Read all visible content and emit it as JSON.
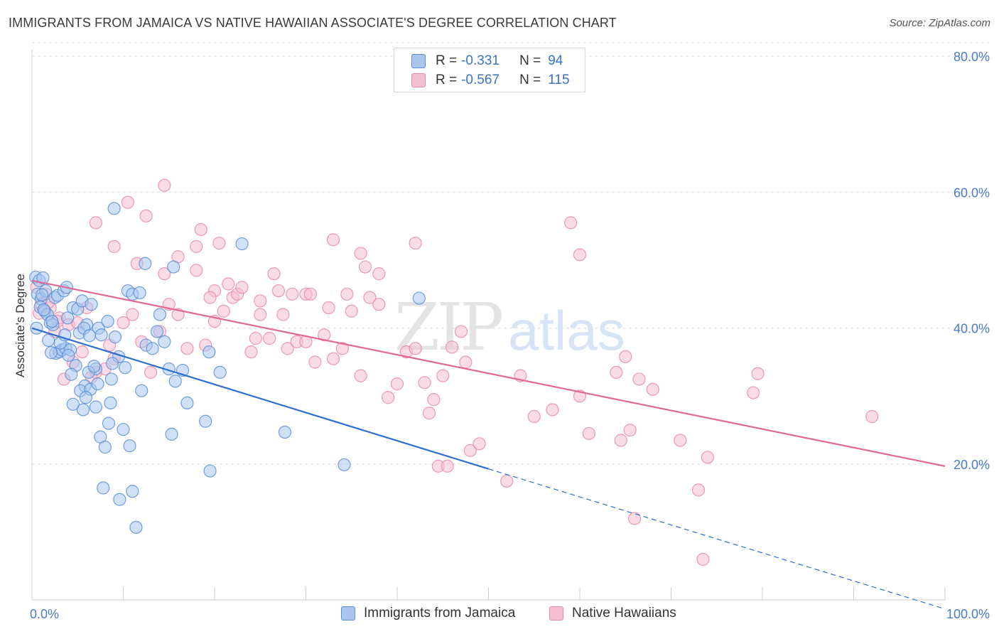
{
  "header": {
    "title": "IMMIGRANTS FROM JAMAICA VS NATIVE HAWAIIAN ASSOCIATE'S DEGREE CORRELATION CHART",
    "source": "Source: ZipAtlas.com"
  },
  "watermark": {
    "zip": "ZIP",
    "atlas": "atlas"
  },
  "colors": {
    "blue_fill": "#a9c6ee",
    "blue_stroke": "#5b8fd6",
    "blue_line": "#2d6fd1",
    "pink_fill": "#f6bfd1",
    "pink_stroke": "#e88aaa",
    "pink_line": "#e06a95",
    "tick_text": "#4a7cc7",
    "grid": "#dcdcdc"
  },
  "legend": {
    "rows": [
      {
        "r_label": "R =",
        "r_value": "-0.331",
        "n_label": "N =",
        "n_value": "94"
      },
      {
        "r_label": "R =",
        "r_value": "-0.567",
        "n_label": "N =",
        "n_value": "115"
      }
    ]
  },
  "bottom_legend": {
    "items": [
      "Immigrants from Jamaica",
      "Native Hawaiians"
    ]
  },
  "chart_data": {
    "type": "scatter",
    "ylabel": "Associate's Degree",
    "xlim": [
      0,
      100
    ],
    "ylim": [
      0,
      82
    ],
    "x_tick_labels": [
      {
        "value": 0,
        "label": "0.0%"
      },
      {
        "value": 100,
        "label": "100.0%"
      }
    ],
    "x_minor_ticks": [
      0,
      10,
      20,
      30,
      40,
      50,
      60,
      70,
      80,
      90,
      100
    ],
    "y_ticks": [
      {
        "value": 20,
        "label": "20.0%"
      },
      {
        "value": 40,
        "label": "40.0%"
      },
      {
        "value": 60,
        "label": "60.0%"
      },
      {
        "value": 80,
        "label": "80.0%"
      }
    ],
    "grid": "horizontal dashed",
    "legend_placement": "top-center",
    "series": [
      {
        "name": "Immigrants from Jamaica",
        "color": "blue",
        "trend": {
          "x0": 0,
          "y0": 40.0,
          "x1": 50,
          "y1": 19.3,
          "dashed_to_x": 100,
          "dashed_to_y": -1.3
        },
        "points": [
          [
            0.4,
            47.5
          ],
          [
            0.8,
            47.0
          ],
          [
            1.2,
            47.4
          ],
          [
            0.6,
            45.0
          ],
          [
            1.0,
            44.3
          ],
          [
            1.5,
            45.5
          ],
          [
            0.9,
            43.1
          ],
          [
            1.4,
            42.5
          ],
          [
            1.7,
            42.0
          ],
          [
            2.0,
            40.8
          ],
          [
            2.5,
            44.5
          ],
          [
            2.8,
            44.8
          ],
          [
            3.5,
            45.5
          ],
          [
            3.8,
            46.0
          ],
          [
            4.5,
            43.0
          ],
          [
            5.0,
            42.8
          ],
          [
            5.5,
            44.0
          ],
          [
            6.5,
            43.5
          ],
          [
            6.0,
            40.5
          ],
          [
            7.3,
            40.0
          ],
          [
            1.8,
            38.2
          ],
          [
            2.3,
            40.5
          ],
          [
            2.6,
            36.3
          ],
          [
            3.0,
            36.5
          ],
          [
            3.3,
            36.8
          ],
          [
            3.7,
            37.0
          ],
          [
            4.2,
            36.8
          ],
          [
            4.8,
            34.5
          ],
          [
            5.2,
            39.3
          ],
          [
            5.7,
            40.0
          ],
          [
            6.3,
            38.9
          ],
          [
            7.6,
            39.0
          ],
          [
            8.3,
            41.0
          ],
          [
            9.5,
            35.8
          ],
          [
            10.2,
            34.2
          ],
          [
            8.8,
            34.8
          ],
          [
            7.0,
            34.0
          ],
          [
            6.2,
            33.5
          ],
          [
            5.8,
            31.5
          ],
          [
            5.3,
            30.8
          ],
          [
            4.5,
            28.8
          ],
          [
            5.6,
            28.0
          ],
          [
            7.0,
            28.4
          ],
          [
            8.6,
            29.0
          ],
          [
            8.4,
            26.0
          ],
          [
            10.0,
            25.1
          ],
          [
            7.5,
            24.0
          ],
          [
            8.0,
            22.5
          ],
          [
            10.7,
            22.7
          ],
          [
            12.0,
            30.8
          ],
          [
            12.5,
            37.5
          ],
          [
            13.2,
            37.0
          ],
          [
            14.0,
            42.0
          ],
          [
            14.5,
            38.0
          ],
          [
            15.0,
            34.0
          ],
          [
            15.7,
            32.2
          ],
          [
            16.5,
            33.8
          ],
          [
            17.0,
            29.0
          ],
          [
            15.3,
            24.4
          ],
          [
            19.0,
            26.3
          ],
          [
            19.4,
            36.5
          ],
          [
            20.6,
            33.5
          ],
          [
            23.0,
            52.4
          ],
          [
            19.5,
            19.0
          ],
          [
            10.5,
            45.5
          ],
          [
            11.0,
            45.0
          ],
          [
            12.4,
            49.5
          ],
          [
            15.5,
            49.0
          ],
          [
            9.0,
            57.6
          ],
          [
            34.2,
            19.9
          ],
          [
            42.4,
            44.4
          ],
          [
            27.7,
            24.7
          ],
          [
            11.0,
            16.0
          ],
          [
            7.8,
            16.5
          ],
          [
            9.6,
            14.8
          ],
          [
            11.4,
            10.7
          ],
          [
            6.4,
            31.0
          ],
          [
            7.2,
            31.8
          ],
          [
            2.1,
            36.4
          ],
          [
            3.1,
            37.8
          ],
          [
            4.0,
            36.0
          ],
          [
            1.3,
            42.7
          ],
          [
            0.5,
            40.0
          ],
          [
            2.2,
            41.0
          ],
          [
            3.6,
            39.0
          ],
          [
            4.3,
            33.2
          ],
          [
            6.8,
            34.4
          ],
          [
            11.8,
            45.2
          ],
          [
            13.7,
            39.5
          ],
          [
            9.1,
            38.7
          ],
          [
            5.9,
            29.8
          ],
          [
            3.9,
            41.5
          ],
          [
            8.7,
            32.5
          ],
          [
            1.1,
            44.9
          ]
        ]
      },
      {
        "name": "Native Hawaiians",
        "color": "pink",
        "trend": {
          "x0": 0,
          "y0": 47.0,
          "x1": 100,
          "y1": 19.7
        },
        "points": [
          [
            0.5,
            46.0
          ],
          [
            1.5,
            45.0
          ],
          [
            1.0,
            43.5
          ],
          [
            2.0,
            43.0
          ],
          [
            3.0,
            41.5
          ],
          [
            2.5,
            39.5
          ],
          [
            4.0,
            40.5
          ],
          [
            5.0,
            40.8
          ],
          [
            6.0,
            43.0
          ],
          [
            3.5,
            32.5
          ],
          [
            7.0,
            33.5
          ],
          [
            8.0,
            34.0
          ],
          [
            9.0,
            35.5
          ],
          [
            10.0,
            40.8
          ],
          [
            11.0,
            42.0
          ],
          [
            12.0,
            38.0
          ],
          [
            13.0,
            33.5
          ],
          [
            14.0,
            39.5
          ],
          [
            15.0,
            43.5
          ],
          [
            16.0,
            42.0
          ],
          [
            17.0,
            37.0
          ],
          [
            18.0,
            48.5
          ],
          [
            19.0,
            37.5
          ],
          [
            20.0,
            41.0
          ],
          [
            21.0,
            42.5
          ],
          [
            22.0,
            44.5
          ],
          [
            22.5,
            45.0
          ],
          [
            23.0,
            46.0
          ],
          [
            24.0,
            36.5
          ],
          [
            25.0,
            42.0
          ],
          [
            26.0,
            38.5
          ],
          [
            27.0,
            45.5
          ],
          [
            28.0,
            37.0
          ],
          [
            29.0,
            38.0
          ],
          [
            30.0,
            45.0
          ],
          [
            31.0,
            35.0
          ],
          [
            32.0,
            39.0
          ],
          [
            33.0,
            35.5
          ],
          [
            34.0,
            37.0
          ],
          [
            35.0,
            42.5
          ],
          [
            36.0,
            33.0
          ],
          [
            37.0,
            44.5
          ],
          [
            38.0,
            43.5
          ],
          [
            39.0,
            29.8
          ],
          [
            40.0,
            31.8
          ],
          [
            41.0,
            36.5
          ],
          [
            42.0,
            37.0
          ],
          [
            43.0,
            32.0
          ],
          [
            44.0,
            29.5
          ],
          [
            45.0,
            33.0
          ],
          [
            46.0,
            37.2
          ],
          [
            47.0,
            39.5
          ],
          [
            48.0,
            22.0
          ],
          [
            49.0,
            23.0
          ],
          [
            52.0,
            17.5
          ],
          [
            53.5,
            33.0
          ],
          [
            55.0,
            27.0
          ],
          [
            57.0,
            28.0
          ],
          [
            60.0,
            30.0
          ],
          [
            61.0,
            24.5
          ],
          [
            64.0,
            33.5
          ],
          [
            65.0,
            35.8
          ],
          [
            64.5,
            23.5
          ],
          [
            65.5,
            25.0
          ],
          [
            66.0,
            12.0
          ],
          [
            66.5,
            32.5
          ],
          [
            68.0,
            31.0
          ],
          [
            71.0,
            23.5
          ],
          [
            73.0,
            16.2
          ],
          [
            74.0,
            21.0
          ],
          [
            79.0,
            30.5
          ],
          [
            79.5,
            33.3
          ],
          [
            73.5,
            6.0
          ],
          [
            92.0,
            27.0
          ],
          [
            59.0,
            55.5
          ],
          [
            60.0,
            50.8
          ],
          [
            10.5,
            58.5
          ],
          [
            14.5,
            61.0
          ],
          [
            12.5,
            56.5
          ],
          [
            9.0,
            52.0
          ],
          [
            7.0,
            55.5
          ],
          [
            18.5,
            54.5
          ],
          [
            18.0,
            52.0
          ],
          [
            20.5,
            52.5
          ],
          [
            11.5,
            49.5
          ],
          [
            14.5,
            48.0
          ],
          [
            16.0,
            50.5
          ],
          [
            26.5,
            48.0
          ],
          [
            36.5,
            49.0
          ],
          [
            38.0,
            48.0
          ],
          [
            42.0,
            52.5
          ],
          [
            36.0,
            51.0
          ],
          [
            33.0,
            53.0
          ],
          [
            28.5,
            45.0
          ],
          [
            30.5,
            45.0
          ],
          [
            32.5,
            43.0
          ],
          [
            25.0,
            44.0
          ],
          [
            21.5,
            46.5
          ],
          [
            20.0,
            45.5
          ],
          [
            19.5,
            44.5
          ],
          [
            5.5,
            36.5
          ],
          [
            6.5,
            32.8
          ],
          [
            8.5,
            37.5
          ],
          [
            2.8,
            41.0
          ],
          [
            4.5,
            35.0
          ],
          [
            1.8,
            43.8
          ],
          [
            0.8,
            42.2
          ],
          [
            24.5,
            38.5
          ],
          [
            27.5,
            42.0
          ],
          [
            30.0,
            38.0
          ],
          [
            34.5,
            45.0
          ],
          [
            43.5,
            27.5
          ],
          [
            44.5,
            19.7
          ],
          [
            45.5,
            19.7
          ],
          [
            47.5,
            35.0
          ]
        ]
      }
    ]
  }
}
